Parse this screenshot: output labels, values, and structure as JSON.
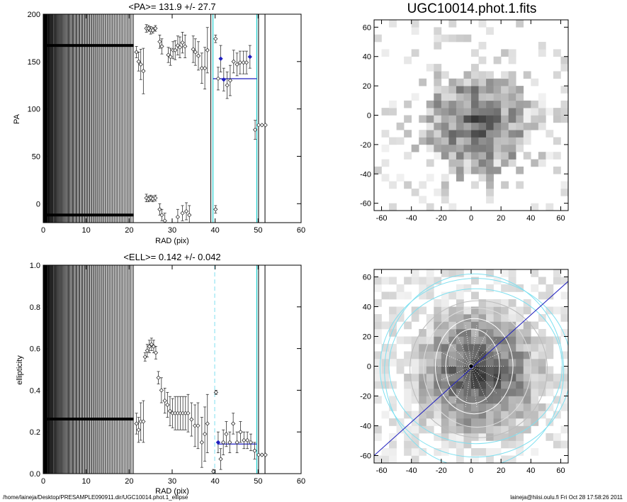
{
  "footer": {
    "path": "/home/laineja/Desktop/PRESAMPLE090911.dir/UGC10014.phot.1_ellipse",
    "stamp": "laineja@hiisi.oulu.fi  Fri Oct 28 17:58:26 2011"
  },
  "chart_data": [
    {
      "type": "scatter",
      "title": "<PA>= 131.9 +/-  27.7",
      "xlabel": "RAD (pix)",
      "ylabel": "PA",
      "xlim": [
        0,
        60
      ],
      "ylim": [
        -20,
        200
      ],
      "xticks": [
        0,
        10,
        20,
        30,
        40,
        50,
        60
      ],
      "yticks": [
        0,
        50,
        100,
        150,
        200
      ],
      "grid": false,
      "dense_lines_until": 21,
      "vlines": [
        {
          "x": 39.5,
          "color": "#00c8c8",
          "style": "solid"
        },
        {
          "x": 39.0,
          "color": "#000000",
          "style": "solid"
        },
        {
          "x": 49.7,
          "color": "#00c8c8",
          "style": "solid"
        },
        {
          "x": 50.1,
          "color": "#000000",
          "style": "solid"
        },
        {
          "x": 51.6,
          "color": "#000000",
          "style": "solid"
        }
      ],
      "mean_line": {
        "x": [
          39.5,
          49.7
        ],
        "y": 131.9,
        "color": "#1f1fbf"
      },
      "flat_series": [
        {
          "y": 167,
          "x_end": 21
        },
        {
          "y": -12,
          "x_end": 21
        }
      ],
      "points": [
        {
          "x": 21.7,
          "y": 160,
          "err": 6
        },
        {
          "x": 22.2,
          "y": 150,
          "err": 10
        },
        {
          "x": 22.7,
          "y": 147,
          "err": 16
        },
        {
          "x": 23.3,
          "y": 140,
          "err": 24
        },
        {
          "x": 24.0,
          "y": 185,
          "err": 4
        },
        {
          "x": 24.5,
          "y": 185,
          "err": 3
        },
        {
          "x": 25.0,
          "y": 183,
          "err": 4
        },
        {
          "x": 25.5,
          "y": 183,
          "err": 3
        },
        {
          "x": 26.1,
          "y": 185,
          "err": 3
        },
        {
          "x": 24.0,
          "y": 6,
          "err": 4
        },
        {
          "x": 24.5,
          "y": 5,
          "err": 3
        },
        {
          "x": 25.0,
          "y": 6,
          "err": 3
        },
        {
          "x": 25.5,
          "y": 5,
          "err": 3
        },
        {
          "x": 26.1,
          "y": 6,
          "err": 3
        },
        {
          "x": 27.1,
          "y": 171,
          "err": 7
        },
        {
          "x": 27.6,
          "y": 166,
          "err": 8
        },
        {
          "x": 27.1,
          "y": -6,
          "err": 6
        },
        {
          "x": 27.6,
          "y": -12,
          "err": 6
        },
        {
          "x": 28.3,
          "y": -18,
          "err": 8
        },
        {
          "x": 29.1,
          "y": 157,
          "err": 8
        },
        {
          "x": 29.6,
          "y": 155,
          "err": 9
        },
        {
          "x": 30.2,
          "y": 162,
          "err": 9
        },
        {
          "x": 30.7,
          "y": 162,
          "err": 10
        },
        {
          "x": 31.3,
          "y": 167,
          "err": 10
        },
        {
          "x": 31.8,
          "y": 165,
          "err": 11
        },
        {
          "x": 32.4,
          "y": 170,
          "err": 11
        },
        {
          "x": 33.0,
          "y": 166,
          "err": 12
        },
        {
          "x": 31.3,
          "y": -14,
          "err": 8
        },
        {
          "x": 32.4,
          "y": -10,
          "err": 8
        },
        {
          "x": 33.3,
          "y": -8,
          "err": 9
        },
        {
          "x": 34.0,
          "y": -12,
          "err": 10
        },
        {
          "x": 34.9,
          "y": 163,
          "err": 14
        },
        {
          "x": 35.4,
          "y": 160,
          "err": 14
        },
        {
          "x": 36.1,
          "y": 156,
          "err": 15
        },
        {
          "x": 36.9,
          "y": 143,
          "err": 16
        },
        {
          "x": 37.6,
          "y": 143,
          "err": 22
        },
        {
          "x": 38.2,
          "y": 162,
          "err": 24
        },
        {
          "x": 40.1,
          "y": 174,
          "err": 4
        },
        {
          "x": 40.1,
          "y": -6,
          "err": 4
        },
        {
          "x": 40.7,
          "y": 132,
          "err": 12
        },
        {
          "x": 41.3,
          "y": 153,
          "err": 14,
          "color": "#1f1fbf"
        },
        {
          "x": 42.0,
          "y": 131,
          "err": 12,
          "color": "#1f1fbf"
        },
        {
          "x": 42.8,
          "y": 125,
          "err": 14
        },
        {
          "x": 43.5,
          "y": 130,
          "err": 16
        },
        {
          "x": 44.3,
          "y": 150,
          "err": 12
        },
        {
          "x": 45.1,
          "y": 147,
          "err": 12
        },
        {
          "x": 45.8,
          "y": 149,
          "err": 12
        },
        {
          "x": 46.6,
          "y": 149,
          "err": 12
        },
        {
          "x": 47.3,
          "y": 149,
          "err": 12
        },
        {
          "x": 48.1,
          "y": 155,
          "err": 12,
          "color": "#1f1fbf"
        },
        {
          "x": 49.3,
          "y": 78,
          "err": 10
        },
        {
          "x": 50.1,
          "y": 83,
          "err": 0
        },
        {
          "x": 50.9,
          "y": 83,
          "err": 0
        },
        {
          "x": 51.7,
          "y": 83,
          "err": 0
        }
      ]
    },
    {
      "type": "scatter",
      "title": "<ELL>= 0.142 +/-  0.042",
      "xlabel": "RAD (pix)",
      "ylabel": "ellipticity",
      "xlim": [
        0,
        60
      ],
      "ylim": [
        0,
        1
      ],
      "xticks": [
        0,
        10,
        20,
        30,
        40,
        50,
        60
      ],
      "yticks": [
        0.0,
        0.2,
        0.4,
        0.6,
        0.8,
        1.0
      ],
      "grid": false,
      "dense_lines_until": 21,
      "vlines": [
        {
          "x": 39.9,
          "color": "#80e0f0",
          "style": "dashed"
        },
        {
          "x": 49.7,
          "color": "#00c8c8",
          "style": "solid"
        },
        {
          "x": 50.1,
          "color": "#000000",
          "style": "solid"
        },
        {
          "x": 51.6,
          "color": "#000000",
          "style": "solid"
        }
      ],
      "mean_line": {
        "x": [
          40.5,
          49.7
        ],
        "y": 0.142,
        "color": "#1f1fbf"
      },
      "flat_series": [
        {
          "y": 0.262,
          "x_end": 21
        }
      ],
      "points": [
        {
          "x": 21.7,
          "y": 0.24,
          "err": 0.05
        },
        {
          "x": 22.2,
          "y": 0.21,
          "err": 0.06
        },
        {
          "x": 22.7,
          "y": 0.25,
          "err": 0.09
        },
        {
          "x": 23.3,
          "y": 0.25,
          "err": 0.1
        },
        {
          "x": 23.7,
          "y": 0.56,
          "err": 0.02
        },
        {
          "x": 24.2,
          "y": 0.59,
          "err": 0.03
        },
        {
          "x": 24.7,
          "y": 0.61,
          "err": 0.03
        },
        {
          "x": 25.2,
          "y": 0.62,
          "err": 0.03
        },
        {
          "x": 25.7,
          "y": 0.61,
          "err": 0.03
        },
        {
          "x": 26.2,
          "y": 0.58,
          "err": 0.03
        },
        {
          "x": 26.8,
          "y": 0.46,
          "err": 0.03
        },
        {
          "x": 27.5,
          "y": 0.4,
          "err": 0.06
        },
        {
          "x": 28.3,
          "y": 0.35,
          "err": 0.06
        },
        {
          "x": 28.9,
          "y": 0.33,
          "err": 0.06
        },
        {
          "x": 29.5,
          "y": 0.3,
          "err": 0.07
        },
        {
          "x": 30.1,
          "y": 0.29,
          "err": 0.07
        },
        {
          "x": 30.7,
          "y": 0.29,
          "err": 0.08
        },
        {
          "x": 31.3,
          "y": 0.29,
          "err": 0.08
        },
        {
          "x": 31.9,
          "y": 0.29,
          "err": 0.08
        },
        {
          "x": 32.5,
          "y": 0.29,
          "err": 0.08
        },
        {
          "x": 33.1,
          "y": 0.29,
          "err": 0.08
        },
        {
          "x": 33.7,
          "y": 0.29,
          "err": 0.09
        },
        {
          "x": 34.5,
          "y": 0.26,
          "err": 0.08
        },
        {
          "x": 35.3,
          "y": 0.23,
          "err": 0.1
        },
        {
          "x": 36.0,
          "y": 0.23,
          "err": 0.11
        },
        {
          "x": 36.9,
          "y": 0.15,
          "err": 0.12
        },
        {
          "x": 37.6,
          "y": 0.19,
          "err": 0.13
        },
        {
          "x": 38.2,
          "y": 0.24,
          "err": 0.14
        },
        {
          "x": 39.6,
          "y": 0.01,
          "err": 0.01
        },
        {
          "x": 40.2,
          "y": 0.39,
          "err": 0.01
        },
        {
          "x": 40.7,
          "y": 0.15,
          "err": 0.05,
          "color": "#1f1fbf"
        },
        {
          "x": 41.3,
          "y": 0.07,
          "err": 0.05
        },
        {
          "x": 41.9,
          "y": 0.15,
          "err": 0.06
        },
        {
          "x": 42.6,
          "y": 0.19,
          "err": 0.06
        },
        {
          "x": 43.4,
          "y": 0.15,
          "err": 0.05
        },
        {
          "x": 44.2,
          "y": 0.24,
          "err": 0.05
        },
        {
          "x": 45.1,
          "y": 0.15,
          "err": 0.05
        },
        {
          "x": 45.9,
          "y": 0.2,
          "err": 0.05
        },
        {
          "x": 46.7,
          "y": 0.16,
          "err": 0.04
        },
        {
          "x": 47.5,
          "y": 0.16,
          "err": 0.04
        },
        {
          "x": 48.3,
          "y": 0.15,
          "err": 0.04
        },
        {
          "x": 49.2,
          "y": 0.11,
          "err": 0.04
        },
        {
          "x": 50.1,
          "y": 0.09,
          "err": 0
        },
        {
          "x": 50.9,
          "y": 0.09,
          "err": 0
        },
        {
          "x": 51.7,
          "y": 0.09,
          "err": 0
        }
      ]
    },
    {
      "type": "heatmap",
      "title": "UGC10014.phot.1.fits",
      "xlim": [
        -65,
        65
      ],
      "ylim": [
        -65,
        65
      ],
      "xticks": [
        -60,
        -40,
        -20,
        0,
        20,
        40,
        60
      ],
      "yticks": [
        -60,
        -40,
        -20,
        0,
        20,
        40,
        60
      ],
      "grid_size": 26,
      "pixel_scale": 5,
      "seed": 7,
      "colormap": "gray_reversed",
      "description_note": ""
    },
    {
      "type": "heatmap",
      "title": "",
      "xlim": [
        -65,
        65
      ],
      "ylim": [
        -65,
        65
      ],
      "xticks": [
        -60,
        -40,
        -20,
        0,
        20,
        40,
        60
      ],
      "yticks": [
        -60,
        -40,
        -20,
        0,
        20,
        40,
        60
      ],
      "grid_size": 26,
      "pixel_scale": 5,
      "seed": 13,
      "colormap": "gray_reversed",
      "overlay_line": {
        "x": [
          -65,
          65
        ],
        "y": [
          -60,
          57
        ],
        "color": "#1f1fbf"
      },
      "overlay_ellipses": [
        {
          "cx": 2,
          "cy": -3,
          "rx": 60,
          "ry": 65,
          "color": "#7fe0f0"
        },
        {
          "cx": 3,
          "cy": -1,
          "rx": 64,
          "ry": 60,
          "color": "#7fe0f0"
        },
        {
          "cx": 3,
          "cy": 0,
          "rx": 58,
          "ry": 52,
          "color": "#7fe0f0"
        },
        {
          "cx": 5,
          "cy": -2,
          "rx": 46,
          "ry": 46,
          "color": "#bbbbbb"
        },
        {
          "cx": 4,
          "cy": -1,
          "rx": 36,
          "ry": 40,
          "color": "#dddddd"
        },
        {
          "cx": 2,
          "cy": 0,
          "rx": 26,
          "ry": 32,
          "color": "#ffffff"
        },
        {
          "cx": 1,
          "cy": 0,
          "rx": 18,
          "ry": 25,
          "color": "#ffffff"
        }
      ]
    }
  ]
}
